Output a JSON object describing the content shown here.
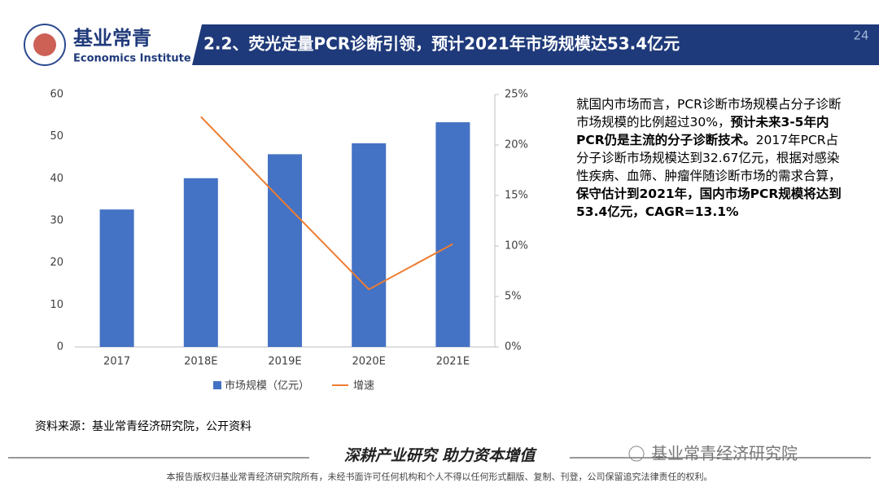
{
  "header": {
    "logo_cn": "基业常青",
    "logo_en": "Economics Institute",
    "title": "2.2、荧光定量PCR诊断引领，预计2021年市场规模达53.4亿元",
    "page_number": "24"
  },
  "chart_data": {
    "type": "bar",
    "categories": [
      "2017",
      "2018E",
      "2019E",
      "2020E",
      "2021E"
    ],
    "series": [
      {
        "name": "市场规模（亿元）",
        "color": "#4472c4",
        "values": [
          32.67,
          40.1,
          45.8,
          48.4,
          53.4
        ]
      },
      {
        "name": "增速",
        "type": "line",
        "axis": "y2",
        "color": "#ed7d31",
        "values": [
          null,
          22.8,
          14.2,
          5.7,
          10.2
        ]
      }
    ],
    "ylim": [
      0,
      60
    ],
    "yticks": [
      0,
      10,
      20,
      30,
      40,
      50,
      60
    ],
    "y2lim": [
      0,
      25
    ],
    "y2ticks": [
      {
        "value": 0,
        "label": "0%"
      },
      {
        "value": 5,
        "label": "5%"
      },
      {
        "value": 10,
        "label": "10%"
      },
      {
        "value": 15,
        "label": "15%"
      },
      {
        "value": 20,
        "label": "20%"
      },
      {
        "value": 25,
        "label": "25%"
      }
    ],
    "legend": "bottom",
    "grid": false
  },
  "text": [
    {
      "text": "就国内市场而言，PCR诊断市场规模占分子诊断市场规模的比例超过30%，",
      "bold": false
    },
    {
      "text": "预计未来3-5年内PCR仍是主流的分子诊断技术。",
      "bold": true
    },
    {
      "text": "2017年PCR占分子诊断市场规模达到32.67亿元，根据对感染性疾病、血筛、肿瘤伴随诊断市场的需求合算，",
      "bold": false
    },
    {
      "text": "保守估计到2021年，国内市场PCR规模将达到53.4亿元，CAGR=13.1%",
      "bold": true
    }
  ],
  "source": "资料来源：基业常青经济研究院，公开资料",
  "slogan": "深耕产业研究 助力资本增值",
  "watermark": "基业常青经济研究院",
  "footer": "本报告版权归基业常青经济研究院所有，未经书面许可任何机构和个人不得以任何形式翻版、复制、刊登，公司保留追究法律责任的权利。"
}
